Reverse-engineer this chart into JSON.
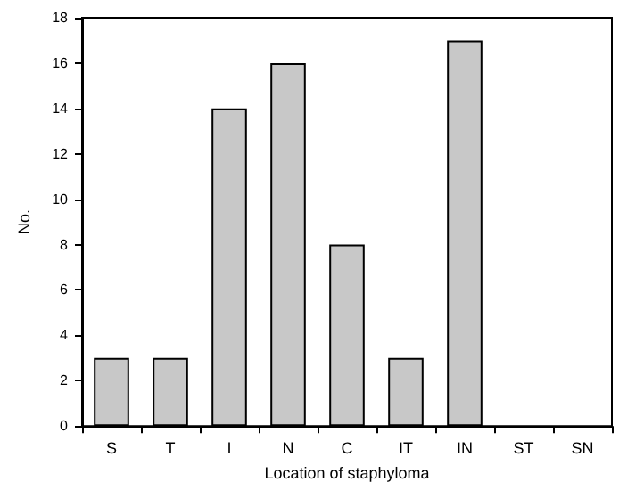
{
  "chart_data": {
    "type": "bar",
    "xlabel": "Location of staphyloma",
    "ylabel": "No.",
    "categories": [
      "S",
      "T",
      "I",
      "N",
      "C",
      "IT",
      "IN",
      "ST",
      "SN"
    ],
    "values": [
      3,
      3,
      14,
      16,
      8,
      3,
      17,
      0,
      0
    ],
    "color": "#c8c8c8",
    "ylim": [
      0,
      18
    ],
    "yticks": [
      0,
      2,
      4,
      6,
      8,
      10,
      12,
      14,
      16,
      18
    ],
    "grid": false
  }
}
